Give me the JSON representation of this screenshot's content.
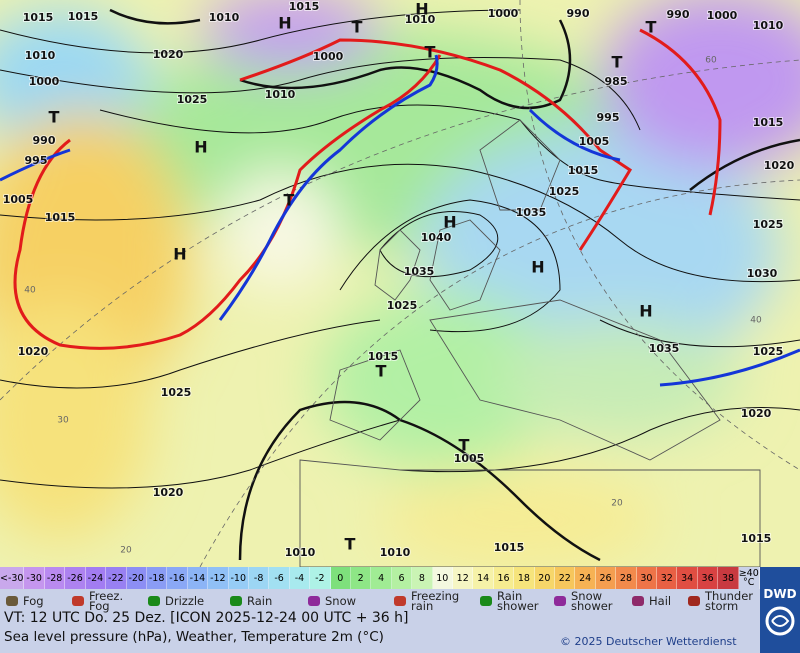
{
  "map": {
    "pressure_labels": [
      "1015",
      "1015",
      "1010",
      "1015",
      "1010",
      "1000",
      "990",
      "990",
      "1000",
      "1010",
      "1010",
      "1020",
      "1000",
      "1010",
      "1025",
      "1000",
      "985",
      "995",
      "1015",
      "1020",
      "990",
      "995",
      "1005",
      "1015",
      "1005",
      "1015",
      "1025",
      "1035",
      "1040",
      "1025",
      "1035",
      "1030",
      "1025",
      "1020",
      "1015",
      "1035",
      "1025",
      "1025",
      "1020",
      "1005",
      "1020",
      "1010",
      "1010",
      "1015",
      "1015"
    ],
    "highs": [
      "H",
      "H",
      "H",
      "H",
      "H",
      "H",
      "H"
    ],
    "lows": [
      "T",
      "T",
      "T",
      "T",
      "T",
      "T",
      "T",
      "T",
      "T"
    ],
    "temperature_labels": [
      "40",
      "30",
      "20",
      "60",
      "40",
      "20"
    ]
  },
  "legend": {
    "colorbar": [
      {
        "label": "<-30",
        "color": "#c9a8ec"
      },
      {
        "label": "-30",
        "color": "#c596ee"
      },
      {
        "label": "-28",
        "color": "#b98af0"
      },
      {
        "label": "-26",
        "color": "#ad82f0"
      },
      {
        "label": "-24",
        "color": "#a27cf2"
      },
      {
        "label": "-22",
        "color": "#9880f2"
      },
      {
        "label": "-20",
        "color": "#8c8ef4"
      },
      {
        "label": "-18",
        "color": "#8a9cf4"
      },
      {
        "label": "-16",
        "color": "#8aa8f6"
      },
      {
        "label": "-14",
        "color": "#8cb4f6"
      },
      {
        "label": "-12",
        "color": "#90c0f6"
      },
      {
        "label": "-10",
        "color": "#96ccf6"
      },
      {
        "label": "-8",
        "color": "#9cd6f4"
      },
      {
        "label": "-6",
        "color": "#a2e0f2"
      },
      {
        "label": "-4",
        "color": "#a8eaee"
      },
      {
        "label": "-2",
        "color": "#aef2e6"
      },
      {
        "label": "0",
        "color": "#7ee07c"
      },
      {
        "label": "2",
        "color": "#8ee686"
      },
      {
        "label": "4",
        "color": "#a0ec94"
      },
      {
        "label": "6",
        "color": "#b4f0a2"
      },
      {
        "label": "8",
        "color": "#caf4b4"
      },
      {
        "label": "10",
        "color": "#f4f8e0"
      },
      {
        "label": "12",
        "color": "#f6f6c4"
      },
      {
        "label": "14",
        "color": "#f6f2a8"
      },
      {
        "label": "16",
        "color": "#f6ec90"
      },
      {
        "label": "18",
        "color": "#f6e47c"
      },
      {
        "label": "20",
        "color": "#f6d66a"
      },
      {
        "label": "22",
        "color": "#f6c65c"
      },
      {
        "label": "24",
        "color": "#f6b254"
      },
      {
        "label": "26",
        "color": "#f49e50"
      },
      {
        "label": "28",
        "color": "#f28a4c"
      },
      {
        "label": "30",
        "color": "#ee7448"
      },
      {
        "label": "32",
        "color": "#e86044"
      },
      {
        "label": "34",
        "color": "#e04e42"
      },
      {
        "label": "36",
        "color": "#d84242"
      },
      {
        "label": "38",
        "color": "#c83a40"
      },
      {
        "label": "≥40 °C",
        "color": "#c9d1e8"
      }
    ],
    "weather": [
      "Fog",
      "Freez. Fog",
      "Drizzle",
      "Rain",
      "Snow",
      "Freezing rain",
      "Rain shower",
      "Snow shower",
      "Hail",
      "Thunder storm"
    ]
  },
  "footer": {
    "valid_time": "VT: 12 UTC Do.  25 Dez. [ICON 2025-12-24  00 UTC + 36 h]",
    "description": "Sea level pressure (hPa), Weather, Temperature 2m (°C)",
    "copyright": "© 2025 Deutscher Wetterdienst",
    "logo": "DWD"
  }
}
